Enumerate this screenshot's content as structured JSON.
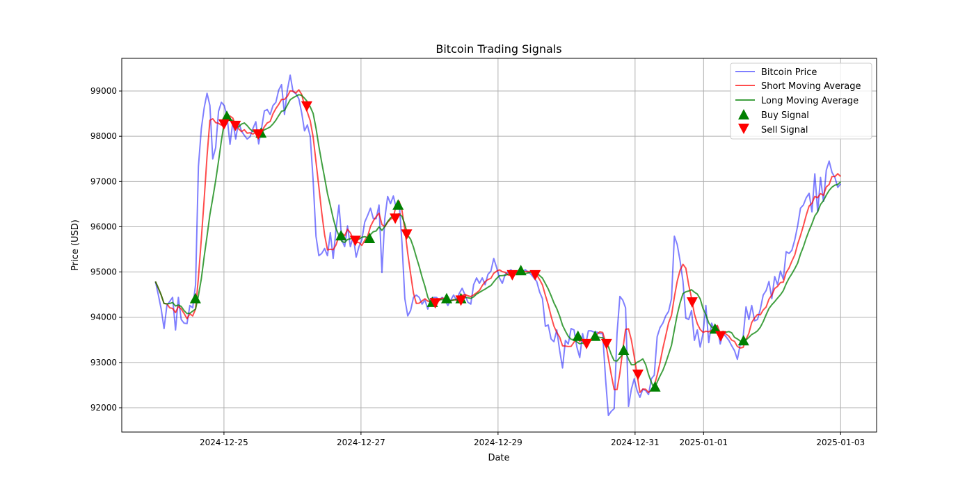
{
  "chart_data": {
    "type": "line",
    "title": "Bitcoin Trading Signals",
    "xlabel": "Date",
    "ylabel": "Price (USD)",
    "x_start": "2024-12-24 00:00",
    "x_unit": "hours since x_start",
    "x_end_hours": 240,
    "xlim_hours": [
      -11.8,
      252.6
    ],
    "ylim": [
      91463,
      99722
    ],
    "grid": true,
    "legend_position": "top-right",
    "x_ticks": [
      {
        "label": "2024-12-25",
        "hours": 24
      },
      {
        "label": "2024-12-27",
        "hours": 72
      },
      {
        "label": "2024-12-29",
        "hours": 120
      },
      {
        "label": "2024-12-31",
        "hours": 168
      },
      {
        "label": "2025-01-01",
        "hours": 192
      },
      {
        "label": "2025-01-03",
        "hours": 240
      }
    ],
    "y_ticks": [
      92000,
      93000,
      94000,
      95000,
      96000,
      97000,
      98000,
      99000
    ],
    "short_ma_window": 5,
    "long_ma_window": 10,
    "series": [
      {
        "name": "Bitcoin Price",
        "color": "#0000ff",
        "values": [
          94790,
          94500,
          94180,
          93750,
          94260,
          94350,
          94440,
          93720,
          94440,
          93950,
          93870,
          93860,
          94260,
          94210,
          94720,
          97330,
          98170,
          98630,
          98950,
          98680,
          97500,
          97750,
          98550,
          98750,
          98680,
          98430,
          97820,
          98320,
          97940,
          98320,
          98120,
          98020,
          97940,
          97990,
          98170,
          98320,
          97830,
          98170,
          98560,
          98590,
          98480,
          98680,
          98750,
          99020,
          99140,
          98480,
          99020,
          99350,
          98990,
          98940,
          98830,
          98520,
          98120,
          98250,
          98000,
          97020,
          95790,
          95360,
          95410,
          95520,
          95360,
          95870,
          95300,
          95950,
          96480,
          95710,
          95560,
          96020,
          95560,
          95790,
          95330,
          95560,
          95710,
          96100,
          96250,
          96410,
          96180,
          96180,
          96480,
          94990,
          96180,
          96670,
          96510,
          96680,
          96410,
          96560,
          95640,
          94410,
          94030,
          94150,
          94440,
          94490,
          94440,
          94290,
          94380,
          94180,
          94410,
          94440,
          94440,
          94380,
          94440,
          94380,
          94260,
          94380,
          94490,
          94380,
          94530,
          94640,
          94490,
          94330,
          94290,
          94720,
          94870,
          94750,
          94870,
          94720,
          94950,
          95020,
          95300,
          95100,
          94870,
          94750,
          94950,
          95000,
          95050,
          94980,
          95000,
          95020,
          95000,
          95050,
          95000,
          94950,
          94870,
          94790,
          94560,
          94410,
          93800,
          93830,
          93520,
          93460,
          93720,
          93260,
          92880,
          93490,
          93410,
          93750,
          93720,
          93340,
          93110,
          93640,
          93370,
          93700,
          93700,
          93670,
          93670,
          93640,
          93640,
          92640,
          91830,
          91920,
          91980,
          93640,
          94460,
          94380,
          94210,
          92030,
          92410,
          92640,
          92380,
          92230,
          92410,
          92380,
          92290,
          92640,
          92720,
          93570,
          93770,
          93870,
          94030,
          94130,
          94410,
          95790,
          95610,
          95250,
          94790,
          93980,
          93950,
          94150,
          93490,
          93720,
          93340,
          93640,
          94260,
          93440,
          93870,
          93720,
          93800,
          93410,
          93640,
          93570,
          93490,
          93370,
          93260,
          93070,
          93410,
          93570,
          94230,
          93950,
          94260,
          93920,
          93950,
          94180,
          94490,
          94590,
          94790,
          94410,
          94900,
          94720,
          95020,
          94840,
          95450,
          95410,
          95480,
          95710,
          96020,
          96410,
          96480,
          96640,
          96740,
          96330,
          97170,
          96330,
          97090,
          96560,
          97250,
          97450,
          97200,
          97090,
          96870,
          96950
        ]
      },
      {
        "name": "Short Moving Average",
        "color": "#ff0000"
      },
      {
        "name": "Long Moving Average",
        "color": "#008000"
      }
    ],
    "buy_signals": [
      [
        14,
        94400
      ],
      [
        25,
        98430
      ],
      [
        37,
        98060
      ],
      [
        65,
        95790
      ],
      [
        75,
        95730
      ],
      [
        85,
        96470
      ],
      [
        97,
        94320
      ],
      [
        102,
        94400
      ],
      [
        107,
        94400
      ],
      [
        128,
        95020
      ],
      [
        148,
        93570
      ],
      [
        154,
        93570
      ],
      [
        164,
        93260
      ],
      [
        175,
        92450
      ],
      [
        196,
        93730
      ],
      [
        206,
        93470
      ]
    ],
    "sell_signals": [
      [
        24,
        98280
      ],
      [
        28,
        98250
      ],
      [
        36,
        98060
      ],
      [
        53,
        98680
      ],
      [
        70,
        95710
      ],
      [
        84,
        96200
      ],
      [
        88,
        95850
      ],
      [
        98,
        94330
      ],
      [
        107,
        94390
      ],
      [
        125,
        94950
      ],
      [
        133,
        94950
      ],
      [
        151,
        93430
      ],
      [
        158,
        93430
      ],
      [
        169,
        92750
      ],
      [
        188,
        94350
      ],
      [
        198,
        93600
      ]
    ],
    "legend": [
      "Bitcoin Price",
      "Short Moving Average",
      "Long Moving Average",
      "Buy Signal",
      "Sell Signal"
    ]
  }
}
